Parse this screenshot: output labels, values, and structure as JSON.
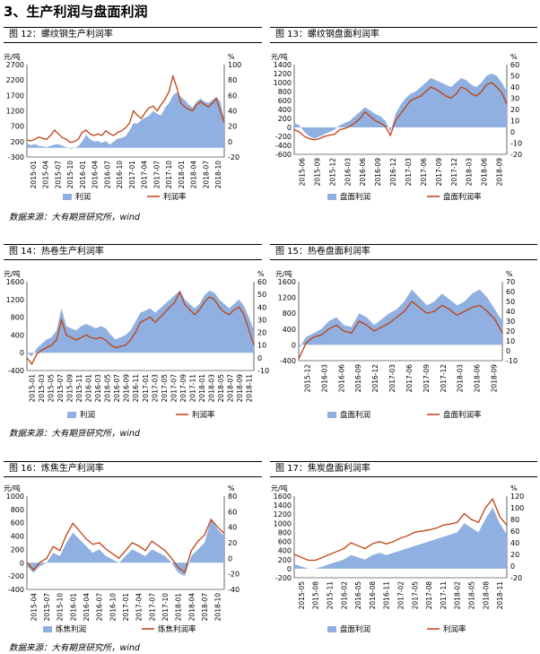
{
  "section_title": "3、生产利润与盘面利润",
  "source_text": "数据来源：大有期货研究所，wind",
  "colors": {
    "bar": "#8fb0e0",
    "line": "#c0400f"
  },
  "charts": [
    {
      "caption": "图 12：螺纹钢生产利润率",
      "chart_data": {
        "type": "area",
        "left_unit": "元/吨",
        "right_unit": "%",
        "left_ticks": [
          -300,
          200,
          700,
          1200,
          1700,
          2200,
          2700
        ],
        "right_ticks": [
          -20,
          0,
          20,
          40,
          60,
          80,
          100
        ],
        "x_labels": [
          "2015-01",
          "2015-04",
          "2015-07",
          "2015-10",
          "2016-01",
          "2016-04",
          "2016-07",
          "2016-10",
          "2017-01",
          "2017-04",
          "2017-07",
          "2017-10",
          "2018-01",
          "2018-04",
          "2018-07",
          "2018-10"
        ],
        "series": [
          {
            "name": "利润",
            "kind": "area",
            "axis": "left",
            "values": [
              150,
              80,
              120,
              60,
              40,
              20,
              60,
              100,
              120,
              60,
              20,
              -30,
              -10,
              50,
              200,
              420,
              280,
              200,
              220,
              160,
              220,
              100,
              200,
              300,
              320,
              380,
              560,
              800,
              780,
              900,
              980,
              1050,
              1200,
              1100,
              1050,
              1300,
              1450,
              1700,
              1800,
              1650,
              1550,
              1400,
              1300,
              1500,
              1600,
              1500,
              1450,
              1550,
              1650,
              1500,
              900
            ]
          },
          {
            "name": "利润率",
            "kind": "line",
            "axis": "right",
            "values": [
              2,
              1,
              3,
              6,
              4,
              3,
              8,
              15,
              10,
              5,
              3,
              -1,
              0,
              3,
              12,
              15,
              10,
              8,
              10,
              8,
              14,
              10,
              8,
              12,
              14,
              18,
              24,
              40,
              34,
              30,
              38,
              44,
              46,
              40,
              48,
              55,
              65,
              85,
              70,
              50,
              45,
              42,
              40,
              48,
              52,
              48,
              45,
              50,
              56,
              40,
              25
            ]
          }
        ]
      }
    },
    {
      "caption": "图 13：螺纹钢盘面利润率",
      "chart_data": {
        "type": "area",
        "left_unit": "元/吨",
        "right_unit": "%",
        "left_ticks": [
          -600,
          -400,
          -200,
          0,
          200,
          400,
          600,
          800,
          1000,
          1200,
          1400
        ],
        "right_ticks": [
          -20,
          -10,
          0,
          10,
          20,
          30,
          40,
          50,
          60
        ],
        "x_labels": [
          "2015-06",
          "2015-09",
          "2015-12",
          "2016-03",
          "2016-06",
          "2016-09",
          "2016-12",
          "2017-03",
          "2017-06",
          "2017-09",
          "2017-12",
          "2018-03",
          "2018-06",
          "2018-09"
        ],
        "series": [
          {
            "name": "盘面利润",
            "kind": "area",
            "axis": "left",
            "values": [
              100,
              50,
              -100,
              -200,
              -250,
              -200,
              -150,
              -100,
              -50,
              50,
              100,
              150,
              250,
              350,
              450,
              380,
              300,
              250,
              150,
              -100,
              300,
              500,
              650,
              750,
              800,
              900,
              1000,
              1100,
              1050,
              1000,
              950,
              900,
              1000,
              1100,
              1050,
              950,
              900,
              1000,
              1150,
              1200,
              1150,
              1000,
              800
            ]
          },
          {
            "name": "盘面利润率",
            "kind": "line",
            "axis": "right",
            "values": [
              2,
              0,
              -4,
              -6,
              -7,
              -6,
              -4,
              -3,
              -2,
              2,
              3,
              5,
              8,
              12,
              18,
              14,
              10,
              8,
              5,
              -3,
              10,
              16,
              22,
              28,
              30,
              32,
              36,
              40,
              38,
              35,
              32,
              30,
              34,
              40,
              38,
              34,
              32,
              36,
              42,
              44,
              40,
              35,
              25
            ]
          }
        ]
      }
    },
    {
      "caption": "图 14：热卷生产利润率",
      "chart_data": {
        "type": "area",
        "left_unit": "元/吨",
        "right_unit": "%",
        "left_ticks": [
          -400,
          0,
          400,
          800,
          1200,
          1600
        ],
        "right_ticks": [
          -10,
          0,
          10,
          20,
          30,
          40,
          50,
          60
        ],
        "x_labels": [
          "2015-01",
          "2015-03",
          "2015-05",
          "2015-07",
          "2015-09",
          "2015-11",
          "2016-01",
          "2016-03",
          "2016-05",
          "2016-07",
          "2016-09",
          "2016-11",
          "2017-01",
          "2017-03",
          "2017-05",
          "2017-07",
          "2017-09",
          "2017-11",
          "2018-01",
          "2018-03",
          "2018-05",
          "2018-07",
          "2018-09",
          "2018-11"
        ],
        "series": [
          {
            "name": "利润",
            "kind": "area",
            "axis": "left",
            "values": [
              0,
              -80,
              100,
              200,
              300,
              350,
              500,
              1000,
              600,
              550,
              500,
              600,
              650,
              600,
              550,
              600,
              550,
              400,
              300,
              350,
              400,
              500,
              700,
              900,
              950,
              1000,
              900,
              1000,
              1100,
              1200,
              1300,
              1400,
              1200,
              1100,
              1000,
              1100,
              1300,
              1400,
              1350,
              1200,
              1100,
              1000,
              1100,
              1200,
              1050,
              800,
              500
            ]
          },
          {
            "name": "利润率",
            "kind": "line",
            "axis": "right",
            "values": [
              0,
              -5,
              3,
              6,
              8,
              10,
              14,
              30,
              18,
              16,
              14,
              16,
              18,
              16,
              15,
              16,
              14,
              10,
              8,
              9,
              10,
              14,
              20,
              28,
              30,
              32,
              28,
              32,
              36,
              40,
              44,
              52,
              42,
              38,
              34,
              38,
              44,
              48,
              46,
              40,
              36,
              34,
              38,
              40,
              34,
              22,
              10
            ]
          }
        ]
      }
    },
    {
      "caption": "图 15：热卷盘面利润率",
      "chart_data": {
        "type": "area",
        "left_unit": "元/吨",
        "right_unit": "%",
        "left_ticks": [
          -400,
          0,
          400,
          800,
          1200,
          1600
        ],
        "right_ticks": [
          -10,
          0,
          10,
          20,
          30,
          40,
          50,
          60,
          70
        ],
        "x_labels": [
          "2015-12",
          "2016-03",
          "2016-06",
          "2016-09",
          "2016-12",
          "2017-03",
          "2017-06",
          "2017-09",
          "2017-12",
          "2018-03",
          "2018-06",
          "2018-09"
        ],
        "series": [
          {
            "name": "盘面利润",
            "kind": "area",
            "axis": "left",
            "values": [
              -100,
              200,
              300,
              400,
              600,
              700,
              500,
              450,
              800,
              700,
              500,
              650,
              800,
              900,
              1100,
              1400,
              1200,
              1000,
              1100,
              1300,
              1150,
              1000,
              1100,
              1300,
              1400,
              1200,
              900,
              600
            ]
          },
          {
            "name": "盘面利润率",
            "kind": "line",
            "axis": "right",
            "values": [
              -8,
              8,
              14,
              16,
              22,
              26,
              20,
              18,
              30,
              26,
              20,
              24,
              28,
              34,
              40,
              50,
              44,
              38,
              40,
              46,
              42,
              36,
              40,
              44,
              46,
              40,
              32,
              18
            ]
          }
        ]
      }
    },
    {
      "caption": "图 16：炼焦生产利润率",
      "chart_data": {
        "type": "area",
        "left_unit": "元/吨",
        "right_unit": "%",
        "left_ticks": [
          -400,
          -200,
          0,
          200,
          400,
          600,
          800,
          1000
        ],
        "right_ticks": [
          -40,
          -20,
          0,
          20,
          40,
          60,
          80
        ],
        "x_labels": [
          "2015-04",
          "2015-07",
          "2015-10",
          "2016-01",
          "2016-04",
          "2016-07",
          "2016-10",
          "2017-01",
          "2017-04",
          "2017-07",
          "2017-10",
          "2018-01",
          "2018-04",
          "2018-07",
          "2018-10"
        ],
        "series": [
          {
            "name": "炼焦利润",
            "kind": "area",
            "axis": "left",
            "values": [
              -50,
              -150,
              -50,
              0,
              150,
              100,
              300,
              450,
              350,
              250,
              150,
              200,
              100,
              50,
              0,
              100,
              200,
              150,
              100,
              200,
              150,
              100,
              0,
              -150,
              -200,
              100,
              200,
              300,
              650,
              500,
              400
            ]
          },
          {
            "name": "炼焦利润率",
            "kind": "line",
            "axis": "right",
            "values": [
              -5,
              -15,
              -5,
              0,
              15,
              10,
              30,
              45,
              35,
              25,
              18,
              20,
              12,
              6,
              0,
              10,
              20,
              16,
              10,
              22,
              16,
              10,
              0,
              -12,
              -18,
              10,
              22,
              30,
              50,
              40,
              32
            ]
          }
        ]
      }
    },
    {
      "caption": "图 17：焦炭盘面利润率",
      "chart_data": {
        "type": "area",
        "left_unit": "元/吨",
        "right_unit": "%",
        "left_ticks": [
          -200,
          0,
          200,
          400,
          600,
          800,
          1000,
          1200,
          1400,
          1600
        ],
        "right_ticks": [
          -20,
          0,
          20,
          40,
          60,
          80,
          100,
          120
        ],
        "x_labels": [
          "2015-05",
          "2015-08",
          "2015-11",
          "2016-02",
          "2016-05",
          "2016-08",
          "2016-11",
          "2017-02",
          "2017-05",
          "2017-08",
          "2017-11",
          "2018-02",
          "2018-05",
          "2018-08",
          "2018-11"
        ],
        "series": [
          {
            "name": "盘面利润",
            "kind": "area",
            "axis": "left",
            "values": [
              100,
              50,
              0,
              0,
              50,
              100,
              150,
              200,
              300,
              250,
              200,
              300,
              350,
              300,
              350,
              400,
              450,
              500,
              550,
              600,
              650,
              700,
              750,
              800,
              1000,
              900,
              800,
              1100,
              1350,
              1000,
              750
            ]
          },
          {
            "name": "利润率",
            "kind": "line",
            "axis": "right",
            "values": [
              20,
              15,
              10,
              10,
              15,
              20,
              25,
              30,
              40,
              35,
              30,
              38,
              42,
              38,
              42,
              48,
              52,
              58,
              60,
              62,
              65,
              70,
              72,
              75,
              90,
              80,
              75,
              100,
              115,
              85,
              70
            ]
          }
        ]
      }
    }
  ]
}
